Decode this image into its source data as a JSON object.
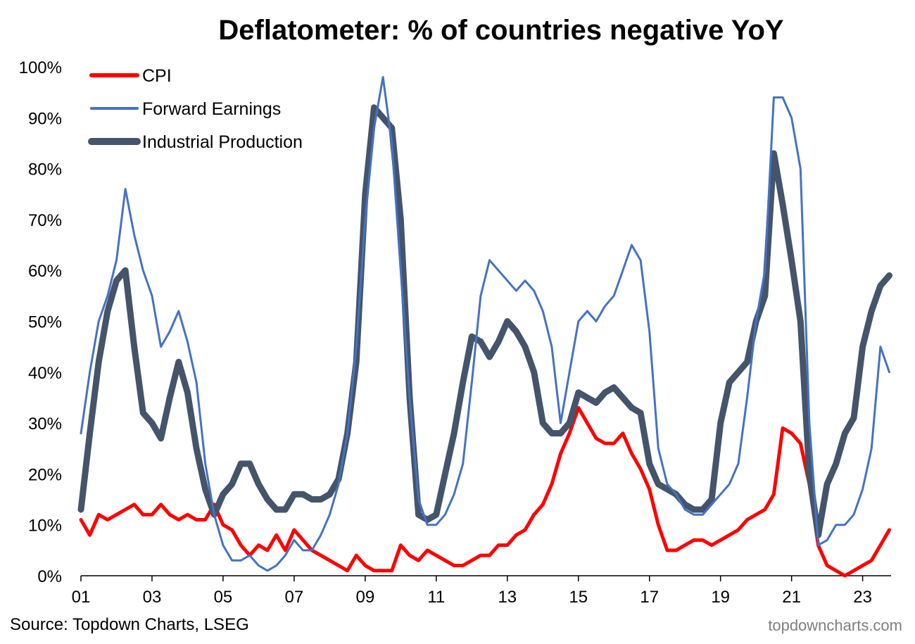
{
  "chart_data": {
    "type": "line",
    "title": "Deflatometer: % of countries negative YoY",
    "xlabel": "",
    "ylabel": "",
    "x_ticks": [
      "01",
      "03",
      "05",
      "07",
      "09",
      "11",
      "13",
      "15",
      "17",
      "19",
      "21",
      "23"
    ],
    "x_tick_years": [
      2001,
      2003,
      2005,
      2007,
      2009,
      2011,
      2013,
      2015,
      2017,
      2019,
      2021,
      2023
    ],
    "xlim": [
      2001.0,
      2023.8
    ],
    "y_ticks": [
      "0%",
      "10%",
      "20%",
      "30%",
      "40%",
      "50%",
      "60%",
      "70%",
      "80%",
      "90%",
      "100%"
    ],
    "ylim": [
      0,
      100
    ],
    "grid": false,
    "legend_position": "top-left",
    "series": [
      {
        "name": "CPI",
        "color": "#ff0000",
        "width": 5,
        "points": [
          [
            2001.0,
            11
          ],
          [
            2001.25,
            8
          ],
          [
            2001.5,
            12
          ],
          [
            2001.75,
            11
          ],
          [
            2002.0,
            12
          ],
          [
            2002.25,
            13
          ],
          [
            2002.5,
            14
          ],
          [
            2002.75,
            12
          ],
          [
            2003.0,
            12
          ],
          [
            2003.25,
            14
          ],
          [
            2003.5,
            12
          ],
          [
            2003.75,
            11
          ],
          [
            2004.0,
            12
          ],
          [
            2004.25,
            11
          ],
          [
            2004.5,
            11
          ],
          [
            2004.75,
            14
          ],
          [
            2005.0,
            10
          ],
          [
            2005.25,
            9
          ],
          [
            2005.5,
            6
          ],
          [
            2005.75,
            4
          ],
          [
            2006.0,
            6
          ],
          [
            2006.25,
            5
          ],
          [
            2006.5,
            8
          ],
          [
            2006.75,
            5
          ],
          [
            2007.0,
            9
          ],
          [
            2007.25,
            7
          ],
          [
            2007.5,
            5
          ],
          [
            2007.75,
            4
          ],
          [
            2008.0,
            3
          ],
          [
            2008.25,
            2
          ],
          [
            2008.5,
            1
          ],
          [
            2008.75,
            4
          ],
          [
            2009.0,
            2
          ],
          [
            2009.25,
            1
          ],
          [
            2009.5,
            1
          ],
          [
            2009.75,
            1
          ],
          [
            2010.0,
            6
          ],
          [
            2010.25,
            4
          ],
          [
            2010.5,
            3
          ],
          [
            2010.75,
            5
          ],
          [
            2011.0,
            4
          ],
          [
            2011.25,
            3
          ],
          [
            2011.5,
            2
          ],
          [
            2011.75,
            2
          ],
          [
            2012.0,
            3
          ],
          [
            2012.25,
            4
          ],
          [
            2012.5,
            4
          ],
          [
            2012.75,
            6
          ],
          [
            2013.0,
            6
          ],
          [
            2013.25,
            8
          ],
          [
            2013.5,
            9
          ],
          [
            2013.75,
            12
          ],
          [
            2014.0,
            14
          ],
          [
            2014.25,
            18
          ],
          [
            2014.5,
            24
          ],
          [
            2014.75,
            28
          ],
          [
            2015.0,
            33
          ],
          [
            2015.25,
            30
          ],
          [
            2015.5,
            27
          ],
          [
            2015.75,
            26
          ],
          [
            2016.0,
            26
          ],
          [
            2016.25,
            28
          ],
          [
            2016.5,
            24
          ],
          [
            2016.75,
            21
          ],
          [
            2017.0,
            17
          ],
          [
            2017.25,
            10
          ],
          [
            2017.5,
            5
          ],
          [
            2017.75,
            5
          ],
          [
            2018.0,
            6
          ],
          [
            2018.25,
            7
          ],
          [
            2018.5,
            7
          ],
          [
            2018.75,
            6
          ],
          [
            2019.0,
            7
          ],
          [
            2019.25,
            8
          ],
          [
            2019.5,
            9
          ],
          [
            2019.75,
            11
          ],
          [
            2020.0,
            12
          ],
          [
            2020.25,
            13
          ],
          [
            2020.5,
            16
          ],
          [
            2020.75,
            29
          ],
          [
            2021.0,
            28
          ],
          [
            2021.25,
            26
          ],
          [
            2021.5,
            18
          ],
          [
            2021.75,
            6
          ],
          [
            2022.0,
            2
          ],
          [
            2022.25,
            1
          ],
          [
            2022.5,
            0
          ],
          [
            2022.75,
            1
          ],
          [
            2023.0,
            2
          ],
          [
            2023.25,
            3
          ],
          [
            2023.5,
            6
          ],
          [
            2023.75,
            9
          ]
        ]
      },
      {
        "name": "Forward Earnings",
        "color": "#4472c4",
        "width": 3,
        "points": [
          [
            2001.0,
            28
          ],
          [
            2001.25,
            40
          ],
          [
            2001.5,
            50
          ],
          [
            2001.75,
            55
          ],
          [
            2002.0,
            62
          ],
          [
            2002.25,
            76
          ],
          [
            2002.5,
            67
          ],
          [
            2002.75,
            60
          ],
          [
            2003.0,
            55
          ],
          [
            2003.25,
            45
          ],
          [
            2003.5,
            48
          ],
          [
            2003.75,
            52
          ],
          [
            2004.0,
            46
          ],
          [
            2004.25,
            38
          ],
          [
            2004.5,
            22
          ],
          [
            2004.75,
            12
          ],
          [
            2005.0,
            6
          ],
          [
            2005.25,
            3
          ],
          [
            2005.5,
            3
          ],
          [
            2005.75,
            4
          ],
          [
            2006.0,
            2
          ],
          [
            2006.25,
            1
          ],
          [
            2006.5,
            2
          ],
          [
            2006.75,
            4
          ],
          [
            2007.0,
            7
          ],
          [
            2007.25,
            5
          ],
          [
            2007.5,
            5
          ],
          [
            2007.75,
            8
          ],
          [
            2008.0,
            12
          ],
          [
            2008.25,
            18
          ],
          [
            2008.5,
            28
          ],
          [
            2008.75,
            45
          ],
          [
            2009.0,
            70
          ],
          [
            2009.25,
            88
          ],
          [
            2009.5,
            98
          ],
          [
            2009.75,
            85
          ],
          [
            2010.0,
            60
          ],
          [
            2010.25,
            35
          ],
          [
            2010.5,
            15
          ],
          [
            2010.75,
            10
          ],
          [
            2011.0,
            10
          ],
          [
            2011.25,
            12
          ],
          [
            2011.5,
            16
          ],
          [
            2011.75,
            22
          ],
          [
            2012.0,
            38
          ],
          [
            2012.25,
            55
          ],
          [
            2012.5,
            62
          ],
          [
            2012.75,
            60
          ],
          [
            2013.0,
            58
          ],
          [
            2013.25,
            56
          ],
          [
            2013.5,
            58
          ],
          [
            2013.75,
            56
          ],
          [
            2014.0,
            52
          ],
          [
            2014.25,
            45
          ],
          [
            2014.5,
            30
          ],
          [
            2014.75,
            40
          ],
          [
            2015.0,
            50
          ],
          [
            2015.25,
            52
          ],
          [
            2015.5,
            50
          ],
          [
            2015.75,
            53
          ],
          [
            2016.0,
            55
          ],
          [
            2016.25,
            60
          ],
          [
            2016.5,
            65
          ],
          [
            2016.75,
            62
          ],
          [
            2017.0,
            48
          ],
          [
            2017.25,
            25
          ],
          [
            2017.5,
            18
          ],
          [
            2017.75,
            16
          ],
          [
            2018.0,
            13
          ],
          [
            2018.25,
            12
          ],
          [
            2018.5,
            12
          ],
          [
            2018.75,
            14
          ],
          [
            2019.0,
            16
          ],
          [
            2019.25,
            18
          ],
          [
            2019.5,
            22
          ],
          [
            2019.75,
            35
          ],
          [
            2020.0,
            50
          ],
          [
            2020.25,
            60
          ],
          [
            2020.5,
            94
          ],
          [
            2020.75,
            94
          ],
          [
            2021.0,
            90
          ],
          [
            2021.25,
            80
          ],
          [
            2021.5,
            30
          ],
          [
            2021.75,
            6
          ],
          [
            2022.0,
            7
          ],
          [
            2022.25,
            10
          ],
          [
            2022.5,
            10
          ],
          [
            2022.75,
            12
          ],
          [
            2023.0,
            17
          ],
          [
            2023.25,
            25
          ],
          [
            2023.5,
            45
          ],
          [
            2023.75,
            40
          ]
        ]
      },
      {
        "name": "Industrial Production",
        "color": "#44546a",
        "width": 9,
        "points": [
          [
            2001.0,
            13
          ],
          [
            2001.25,
            28
          ],
          [
            2001.5,
            42
          ],
          [
            2001.75,
            52
          ],
          [
            2002.0,
            58
          ],
          [
            2002.25,
            60
          ],
          [
            2002.5,
            45
          ],
          [
            2002.75,
            32
          ],
          [
            2003.0,
            30
          ],
          [
            2003.25,
            27
          ],
          [
            2003.5,
            35
          ],
          [
            2003.75,
            42
          ],
          [
            2004.0,
            36
          ],
          [
            2004.25,
            25
          ],
          [
            2004.5,
            17
          ],
          [
            2004.75,
            12
          ],
          [
            2005.0,
            16
          ],
          [
            2005.25,
            18
          ],
          [
            2005.5,
            22
          ],
          [
            2005.75,
            22
          ],
          [
            2006.0,
            18
          ],
          [
            2006.25,
            15
          ],
          [
            2006.5,
            13
          ],
          [
            2006.75,
            13
          ],
          [
            2007.0,
            16
          ],
          [
            2007.25,
            16
          ],
          [
            2007.5,
            15
          ],
          [
            2007.75,
            15
          ],
          [
            2008.0,
            16
          ],
          [
            2008.25,
            19
          ],
          [
            2008.5,
            28
          ],
          [
            2008.75,
            42
          ],
          [
            2009.0,
            75
          ],
          [
            2009.25,
            92
          ],
          [
            2009.5,
            90
          ],
          [
            2009.75,
            88
          ],
          [
            2010.0,
            70
          ],
          [
            2010.25,
            35
          ],
          [
            2010.5,
            12
          ],
          [
            2010.75,
            11
          ],
          [
            2011.0,
            12
          ],
          [
            2011.25,
            20
          ],
          [
            2011.5,
            28
          ],
          [
            2011.75,
            38
          ],
          [
            2012.0,
            47
          ],
          [
            2012.25,
            46
          ],
          [
            2012.5,
            43
          ],
          [
            2012.75,
            46
          ],
          [
            2013.0,
            50
          ],
          [
            2013.25,
            48
          ],
          [
            2013.5,
            45
          ],
          [
            2013.75,
            40
          ],
          [
            2014.0,
            30
          ],
          [
            2014.25,
            28
          ],
          [
            2014.5,
            28
          ],
          [
            2014.75,
            30
          ],
          [
            2015.0,
            36
          ],
          [
            2015.25,
            35
          ],
          [
            2015.5,
            34
          ],
          [
            2015.75,
            36
          ],
          [
            2016.0,
            37
          ],
          [
            2016.25,
            35
          ],
          [
            2016.5,
            33
          ],
          [
            2016.75,
            32
          ],
          [
            2017.0,
            22
          ],
          [
            2017.25,
            18
          ],
          [
            2017.5,
            17
          ],
          [
            2017.75,
            16
          ],
          [
            2018.0,
            14
          ],
          [
            2018.25,
            13
          ],
          [
            2018.5,
            13
          ],
          [
            2018.75,
            15
          ],
          [
            2019.0,
            30
          ],
          [
            2019.25,
            38
          ],
          [
            2019.5,
            40
          ],
          [
            2019.75,
            42
          ],
          [
            2020.0,
            50
          ],
          [
            2020.25,
            55
          ],
          [
            2020.5,
            83
          ],
          [
            2020.75,
            73
          ],
          [
            2021.0,
            62
          ],
          [
            2021.25,
            50
          ],
          [
            2021.5,
            20
          ],
          [
            2021.75,
            8
          ],
          [
            2022.0,
            18
          ],
          [
            2022.25,
            22
          ],
          [
            2022.5,
            28
          ],
          [
            2022.75,
            31
          ],
          [
            2023.0,
            45
          ],
          [
            2023.25,
            52
          ],
          [
            2023.5,
            57
          ],
          [
            2023.75,
            59
          ]
        ]
      }
    ]
  },
  "footer": {
    "source": "Source: Topdown Charts, LSEG",
    "brand": "topdowncharts.com"
  }
}
